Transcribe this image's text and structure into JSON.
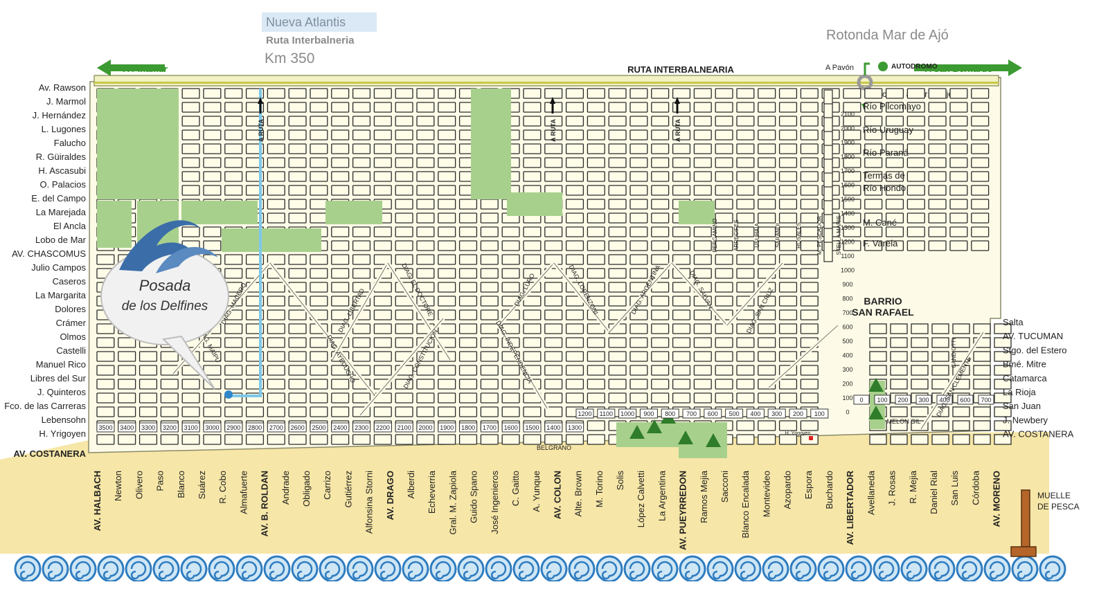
{
  "header": {
    "town": "Nueva Atlantis",
    "route": "Ruta Interbalneria",
    "km": "Km 350",
    "roundabout": "Rotonda Mar de Ajó"
  },
  "highway": {
    "name": "RUTA INTERBALNEARIA",
    "to_west": "A Pinamar",
    "to_east": "A San Bernardo",
    "a_pavon": "A Pavón",
    "autodromo": "AUTODROMO",
    "access": "Acceso a Mar de Ajó"
  },
  "logo": {
    "line1": "Posada",
    "line2": "de los Delfines"
  },
  "horizontal_streets": [
    "Av. Rawson",
    "J. Marmol",
    "J. Hernández",
    "L. Lugones",
    "Falucho",
    "R. Güiraldes",
    "H. Ascasubi",
    "O. Palacios",
    "E. del Campo",
    "La Marejada",
    "El Ancla",
    "Lobo de Mar",
    "AV. CHASCOMUS",
    "Julio Campos",
    "Caseros",
    "La Margarita",
    "Dolores",
    "Crámer",
    "Olmos",
    "Castelli",
    "Manuel Rico",
    "Libres del Sur",
    "J. Quinteros",
    "Fco. de las Carreras",
    "Lebensohn",
    "H. Yrigoyen"
  ],
  "costanera": "AV. COSTANERA",
  "east_streets_top": [
    "Río Pilcomayo",
    "Río Uruguay",
    "Río Paraná",
    "Termas de",
    "Río Hondo",
    "M. Cané",
    "F. Varela"
  ],
  "barrio": [
    "BARRIO",
    "SAN RAFAEL"
  ],
  "east_streets_bottom": [
    "Salta",
    "AV. TUCUMAN",
    "Stgo. del Estero",
    "Bmé. Mitre",
    "Catamarca",
    "La Rioja",
    "San Juan",
    "J. Newbery",
    "AV. COSTANERA"
  ],
  "vertical_streets": [
    "AV. HALBACH",
    "Newton",
    "Olivero",
    "Paso",
    "Blanco",
    "Suárez",
    "R. Cobo",
    "Almafuerte",
    "AV. B. ROLDAN",
    "Andrade",
    "Obligado",
    "Carrizo",
    "Gutiérrez",
    "Alfonsina Storni",
    "AV. DRAGO",
    "Alberdi",
    "Echeverria",
    "Gral. M. Zapiola",
    "Guido Spano",
    "José Ingenieros",
    "C. Gaitto",
    "A. Yunque",
    "AV. COLON",
    "Alte. Brown",
    "M. Torino",
    "Solis",
    "López Calvetti",
    "La Argentina",
    "AV. PUEYRREDON",
    "Ramos Mejia",
    "Sacconi",
    "Blanco Encalada",
    "Montevideo",
    "Azopardo",
    "Espora",
    "Buchardo",
    "AV. LIBERTADOR",
    "Avellaneda",
    "J. Rosas",
    "R. Mejia",
    "Daniel Rial",
    "San Luis",
    "Córdoba",
    "AV. MORENO"
  ],
  "house_numbers_west": [
    "3500",
    "3400",
    "3300",
    "3200",
    "3100",
    "3000",
    "2900",
    "2800",
    "2700",
    "2600",
    "2500",
    "2400",
    "2300",
    "2200",
    "2100",
    "2000",
    "1900",
    "1800",
    "1700",
    "1600",
    "1500",
    "1400",
    "1300"
  ],
  "house_numbers_mid": [
    "1200",
    "1100",
    "1000",
    "900",
    "800",
    "700",
    "600",
    "500",
    "400",
    "300",
    "200",
    "100"
  ],
  "house_numbers_east": [
    "0",
    "100",
    "200",
    "300",
    "400",
    "600",
    "700"
  ],
  "house_numbers_libertador": [
    "2100",
    "2000",
    "1900",
    "1800",
    "1700",
    "1600",
    "1500",
    "1400",
    "1300",
    "1200",
    "1100",
    "1000",
    "900",
    "800",
    "700",
    "600",
    "500",
    "400",
    "300",
    "200",
    "100",
    "0"
  ],
  "diagonals": [
    "DIAG. MACERO",
    "DIAG. MAIPU",
    "DIAG. LIBERTAD",
    "DIAG. EL DOCTORE",
    "DIAG. AYECUCHO",
    "DIAG. CONSTITUCION",
    "DIAG. LURO",
    "DIAG. INDEPENDENCIA",
    "DIAG. LORENZONI",
    "DIAG. ARGENTINA",
    "DIAG. SALVAN",
    "DIAG. SAN CRUZ",
    "DIAG. SAN CLEMENTE"
  ],
  "east_vertical_small": [
    "PERGAMINO",
    "ARRECIFES",
    "USUHAIA",
    "SARANDI",
    "ROSALES",
    "M. PESCADOR",
    "STELLA MARIS",
    "CANDIOTTI"
  ],
  "a_ruta": "A RUTA",
  "belgrano": "BELGRANO",
  "melon_gil": "MELON GIL",
  "h_yrigoyen_small": "H. Yrigoyen",
  "pier": [
    "MUELLE",
    "DE PESCA"
  ],
  "colors": {
    "land": "#fdfbe7",
    "park": "#a8d08d",
    "beach": "#f6e6a7",
    "sea": "#2e7cbf",
    "route": "#7ec8ea",
    "highway": "#c8c84a"
  }
}
